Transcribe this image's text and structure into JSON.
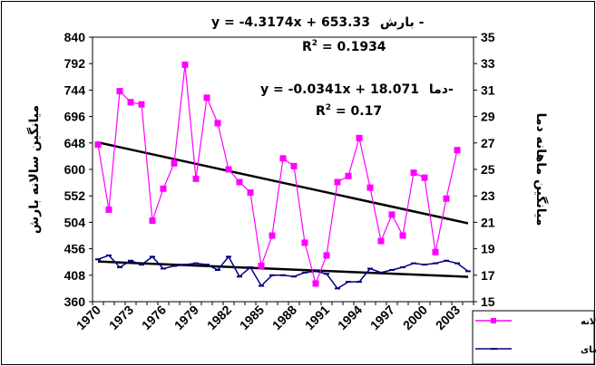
{
  "chart_data": {
    "type": "line",
    "x": [
      1970,
      1971,
      1972,
      1973,
      1974,
      1975,
      1976,
      1977,
      1978,
      1979,
      1980,
      1981,
      1982,
      1983,
      1984,
      1985,
      1986,
      1987,
      1988,
      1989,
      1990,
      1991,
      1992,
      1993,
      1994,
      1995,
      1996,
      1997,
      1998,
      1999,
      2000,
      2001,
      2002,
      2003,
      2004
    ],
    "x_ticks": [
      "1970",
      "1973",
      "1976",
      "1979",
      "1982",
      "1985",
      "1988",
      "1991",
      "1994",
      "1997",
      "2000",
      "2003"
    ],
    "ylabel_left": "میانگین سالانه بارش",
    "ylabel_right": "میانگین ماهانه دما",
    "ylim_left": [
      360,
      840
    ],
    "yticks_left": [
      "840",
      "792",
      "744",
      "696",
      "648",
      "600",
      "552",
      "504",
      "456",
      "408",
      "360"
    ],
    "ylim_right": [
      15,
      35
    ],
    "yticks_right": [
      "35",
      "33",
      "31",
      "29",
      "27",
      "25",
      "23",
      "21",
      "19",
      "17",
      "15"
    ],
    "series": [
      {
        "name": "بارش سالانه",
        "axis": "left",
        "color": "#ff00ff",
        "marker": "square",
        "values": [
          645,
          527,
          742,
          722,
          718,
          507,
          565,
          611,
          790,
          583,
          730,
          684,
          600,
          577,
          558,
          425,
          480,
          620,
          606,
          467,
          393,
          444,
          577,
          588,
          657,
          567,
          470,
          518,
          480,
          594,
          585,
          450,
          547,
          635,
          null
        ]
      },
      {
        "name": "میانگین دمای",
        "axis": "right",
        "color": "#00007f",
        "marker": "dash",
        "values": [
          18.2,
          18.5,
          17.6,
          18.1,
          17.8,
          18.4,
          17.5,
          17.7,
          17.8,
          17.9,
          17.8,
          17.4,
          18.4,
          16.9,
          17.6,
          16.2,
          17.0,
          17.0,
          16.9,
          17.2,
          17.3,
          17.1,
          16.0,
          16.5,
          16.5,
          17.5,
          17.2,
          17.4,
          17.6,
          17.9,
          17.8,
          17.9,
          18.1,
          17.9,
          17.3
        ]
      }
    ],
    "trendlines": [
      {
        "series": "بارش سالانه",
        "axis": "left",
        "slope": -4.3174,
        "intercept": 653.33
      },
      {
        "series": "میانگین دمای",
        "axis": "right",
        "slope": -0.0341,
        "intercept": 18.071
      }
    ],
    "annotations": {
      "eq1": "y = -4.3174x + 653.33",
      "eq1_label": "بارش -",
      "r2_1_value": " = 0.1934",
      "eq2": "y = -0.0341x + 18.071",
      "eq2_label": "دما-",
      "r2_2_value": " = 0.17",
      "r2_prefix": "R",
      "r2_sup": "2"
    },
    "legend": {
      "position": "bottom-right",
      "items": [
        "بارش سالانه",
        "میانگین دمای"
      ]
    },
    "grid": false
  }
}
